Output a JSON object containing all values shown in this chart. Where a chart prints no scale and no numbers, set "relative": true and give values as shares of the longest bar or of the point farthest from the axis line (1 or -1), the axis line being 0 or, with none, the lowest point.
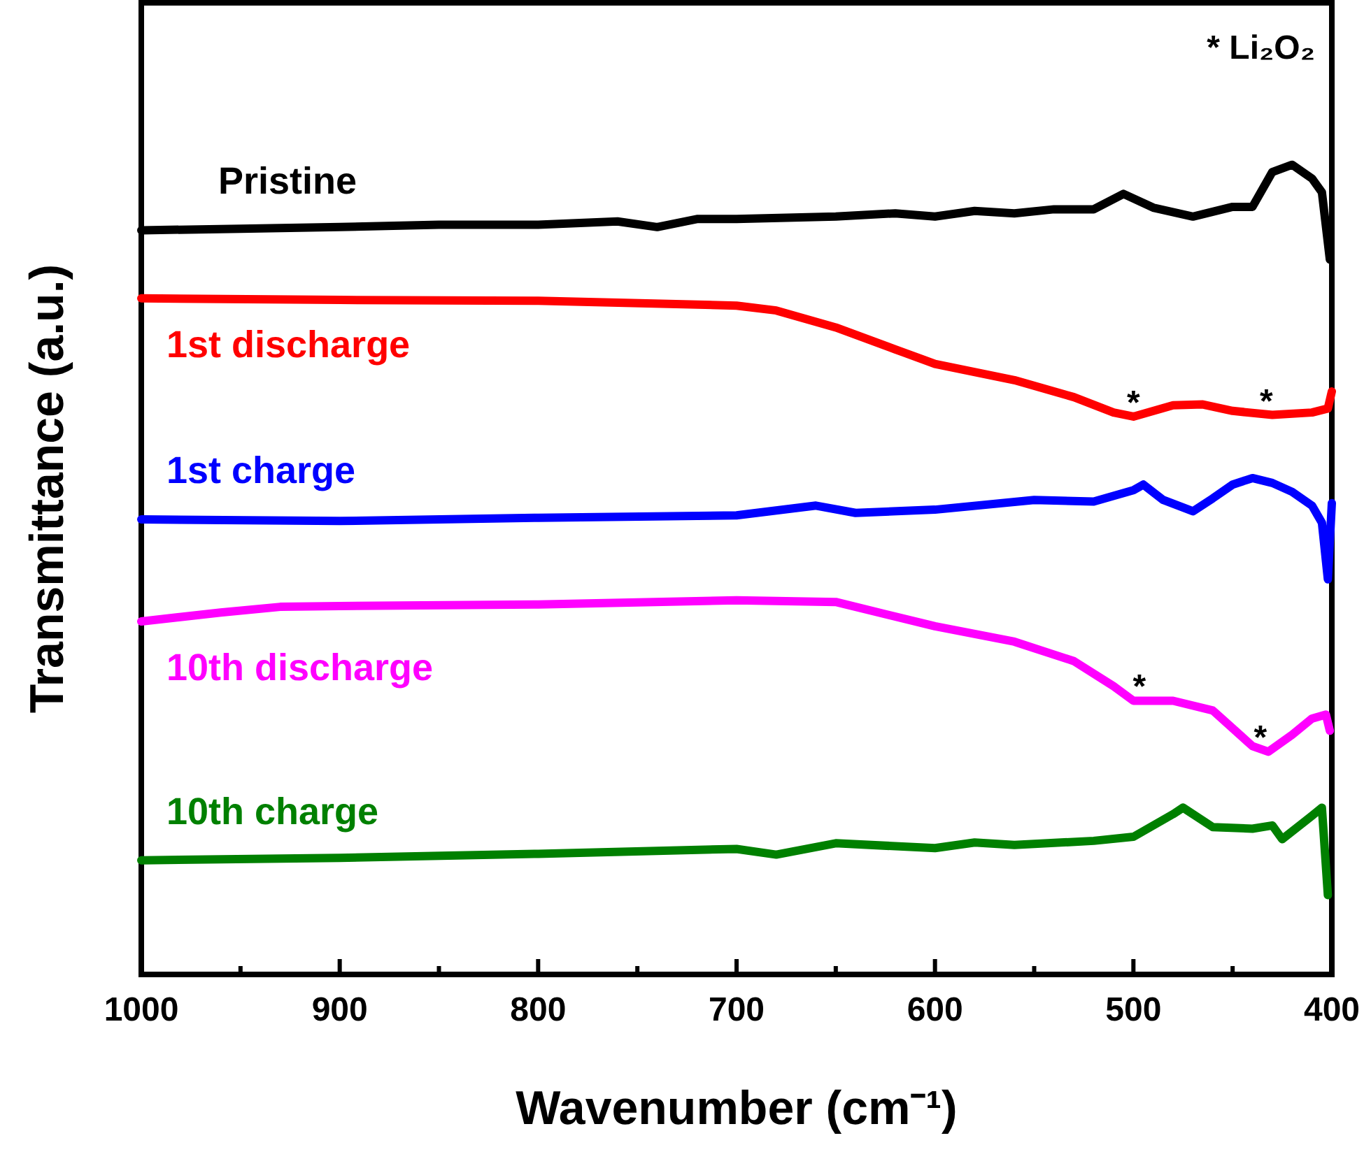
{
  "chart_data": {
    "type": "line",
    "relative": true,
    "xlabel": "Wavenumber (cm⁻¹)",
    "ylabel": "Transmittance (a.u.)",
    "xlim": [
      1000,
      400
    ],
    "xticks": [
      1000,
      {
        "value": 950,
        "label": null
      },
      900,
      {
        "value": 850,
        "label": null
      },
      800,
      {
        "value": 750,
        "label": null
      },
      700,
      {
        "value": 650,
        "label": null
      },
      600,
      {
        "value": 550,
        "label": null
      },
      500,
      {
        "value": 450,
        "label": null
      },
      400
    ],
    "tick_labels": "x",
    "grid": false,
    "marker": "none",
    "line_style": "solid",
    "series": [
      {
        "name": "Pristine",
        "color": "#000000",
        "x": [
          1000,
          950,
          900,
          850,
          800,
          760,
          740,
          720,
          700,
          650,
          620,
          600,
          580,
          560,
          540,
          520,
          505,
          490,
          470,
          450,
          440,
          430,
          420,
          410,
          405,
          401
        ],
        "values": [
          0.919,
          0.921,
          0.923,
          0.926,
          0.926,
          0.93,
          0.923,
          0.933,
          0.933,
          0.936,
          0.94,
          0.936,
          0.943,
          0.94,
          0.945,
          0.945,
          0.964,
          0.947,
          0.936,
          0.948,
          0.948,
          0.991,
          1,
          0.983,
          0.966,
          0.883
        ]
      },
      {
        "name": "1st discharge",
        "color": "#ff0000",
        "x": [
          1000,
          900,
          800,
          700,
          680,
          650,
          620,
          600,
          560,
          530,
          510,
          500,
          480,
          465,
          450,
          430,
          410,
          402,
          400
        ],
        "values": [
          0.835,
          0.833,
          0.832,
          0.826,
          0.82,
          0.799,
          0.772,
          0.754,
          0.734,
          0.713,
          0.694,
          0.689,
          0.703,
          0.704,
          0.696,
          0.691,
          0.694,
          0.699,
          0.72
        ]
      },
      {
        "name": "1st charge",
        "color": "#0000ff",
        "x": [
          1000,
          900,
          800,
          700,
          660,
          640,
          600,
          550,
          520,
          500,
          495,
          485,
          470,
          460,
          450,
          440,
          430,
          420,
          410,
          405,
          402,
          400
        ],
        "values": [
          0.562,
          0.56,
          0.564,
          0.567,
          0.579,
          0.57,
          0.574,
          0.586,
          0.584,
          0.598,
          0.605,
          0.586,
          0.572,
          0.588,
          0.605,
          0.613,
          0.607,
          0.596,
          0.579,
          0.558,
          0.488,
          0.582
        ]
      },
      {
        "name": "10th discharge",
        "color": "#ff00ff",
        "x": [
          1000,
          960,
          930,
          900,
          800,
          700,
          650,
          600,
          560,
          530,
          510,
          500,
          480,
          460,
          440,
          432,
          420,
          410,
          403,
          401
        ],
        "values": [
          0.436,
          0.447,
          0.454,
          0.455,
          0.457,
          0.462,
          0.46,
          0.43,
          0.411,
          0.387,
          0.356,
          0.338,
          0.338,
          0.326,
          0.282,
          0.275,
          0.296,
          0.316,
          0.321,
          0.301
        ]
      },
      {
        "name": "10th charge",
        "color": "#008000",
        "x": [
          1000,
          900,
          800,
          700,
          680,
          650,
          600,
          580,
          560,
          520,
          500,
          480,
          475,
          460,
          440,
          430,
          425,
          410,
          405,
          402
        ],
        "values": [
          0.141,
          0.144,
          0.149,
          0.155,
          0.148,
          0.162,
          0.156,
          0.163,
          0.16,
          0.165,
          0.17,
          0.198,
          0.206,
          0.182,
          0.18,
          0.184,
          0.167,
          0.196,
          0.206,
          0.098
        ]
      }
    ],
    "annotations": [
      "* Li₂O₂",
      {
        "text": "*",
        "x": 500,
        "y": 0.689
      },
      {
        "text": "*",
        "x": 433,
        "y": 0.691
      },
      {
        "text": "*",
        "x": 497,
        "y": 0.338
      },
      {
        "text": "*",
        "x": 436,
        "y": 0.275
      }
    ]
  }
}
